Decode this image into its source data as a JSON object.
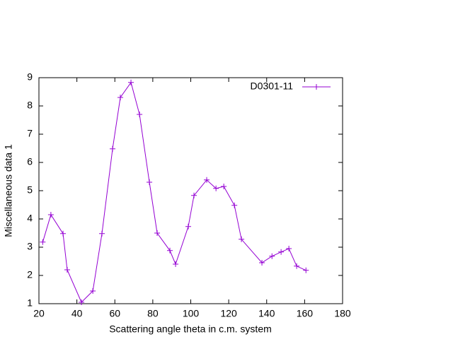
{
  "chart_data": {
    "type": "line",
    "xlabel": "Scattering angle theta in c.m. system",
    "ylabel": "Miscellaneous data 1",
    "x": [
      22,
      26.3,
      32.7,
      34.9,
      42.4,
      48.4,
      53.2,
      58.8,
      62.9,
      68.5,
      73,
      78.2,
      82.3,
      89,
      92,
      98.7,
      101.7,
      108.4,
      113.3,
      117.4,
      123,
      126.7,
      137.5,
      142.8,
      147.6,
      151.7,
      155.8,
      160.7
    ],
    "series": [
      {
        "name": "D0301-11",
        "color": "#9400d3",
        "values": [
          3.18,
          4.15,
          3.48,
          2.2,
          1.05,
          1.45,
          3.48,
          6.48,
          8.3,
          8.83,
          7.7,
          5.3,
          3.5,
          2.88,
          2.4,
          3.73,
          4.83,
          5.38,
          5.08,
          5.15,
          4.48,
          3.28,
          2.45,
          2.68,
          2.83,
          2.95,
          2.33,
          2.18
        ]
      }
    ],
    "xlim": [
      20,
      180
    ],
    "xticks": [
      20,
      40,
      60,
      80,
      100,
      120,
      140,
      160,
      180
    ],
    "ylim": [
      1,
      9
    ],
    "yticks": [
      1,
      2,
      3,
      4,
      5,
      6,
      7,
      8,
      9
    ],
    "legend": "upper right"
  }
}
